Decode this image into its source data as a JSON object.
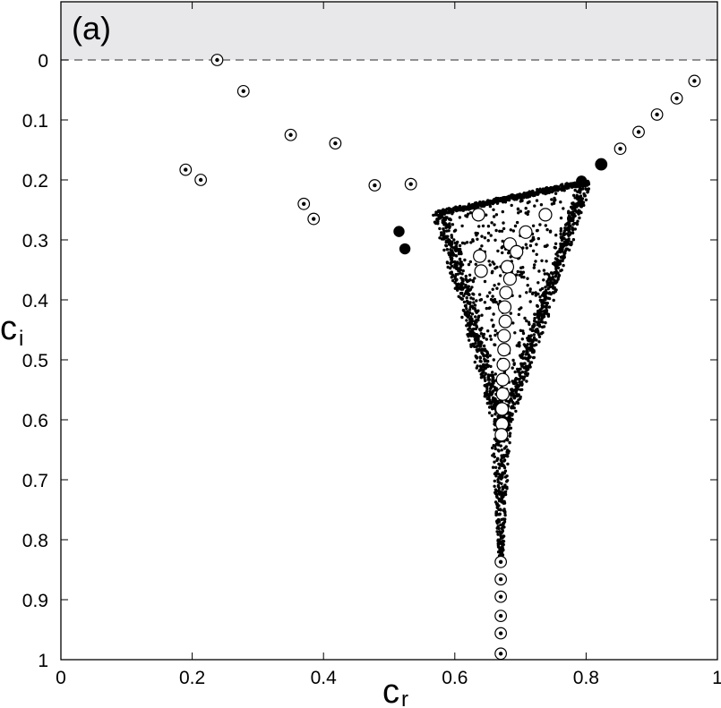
{
  "chart_data": {
    "type": "scatter",
    "panel_label": "(a)",
    "xlabel": {
      "main": "c",
      "sub": "r"
    },
    "ylabel": {
      "main": "c",
      "sub": "i"
    },
    "xlim": [
      0,
      1
    ],
    "ylim": [
      0,
      1
    ],
    "y_inverted": true,
    "x_ticks": [
      "0",
      "0.2",
      "0.4",
      "0.6",
      "0.8",
      "1"
    ],
    "y_ticks": [
      "0",
      "0.1",
      "0.2",
      "0.3",
      "0.4",
      "0.5",
      "0.6",
      "0.7",
      "0.8",
      "0.9",
      "1"
    ],
    "shaded_region": {
      "ci_below": 0,
      "color": "#e8e7ea"
    },
    "reference_line": {
      "ci": 0,
      "style": "dashed",
      "color": "#555555"
    },
    "grid": false,
    "colors": {
      "dot": "#000000",
      "ring": "#000000",
      "shade": "#e8e7ea"
    },
    "series": [
      {
        "marker": "ringed-dot",
        "points": [
          [
            0.238,
            0.0
          ],
          [
            0.278,
            0.052
          ],
          [
            0.35,
            0.125
          ],
          [
            0.418,
            0.139
          ],
          [
            0.19,
            0.183
          ],
          [
            0.213,
            0.2
          ],
          [
            0.478,
            0.209
          ],
          [
            0.533,
            0.207
          ],
          [
            0.37,
            0.24
          ],
          [
            0.385,
            0.265
          ],
          [
            0.823,
            0.174
          ],
          [
            0.852,
            0.148
          ],
          [
            0.88,
            0.12
          ],
          [
            0.908,
            0.091
          ],
          [
            0.938,
            0.064
          ],
          [
            0.965,
            0.035
          ],
          [
            0.67,
            0.837
          ],
          [
            0.67,
            0.866
          ],
          [
            0.67,
            0.895
          ],
          [
            0.67,
            0.927
          ],
          [
            0.67,
            0.956
          ],
          [
            0.67,
            0.99
          ]
        ]
      },
      {
        "marker": "open-circle",
        "points": [
          [
            0.636,
            0.258
          ],
          [
            0.738,
            0.258
          ],
          [
            0.708,
            0.287
          ],
          [
            0.684,
            0.307
          ],
          [
            0.694,
            0.32
          ],
          [
            0.638,
            0.327
          ],
          [
            0.68,
            0.345
          ],
          [
            0.64,
            0.352
          ],
          [
            0.684,
            0.365
          ],
          [
            0.678,
            0.388
          ],
          [
            0.676,
            0.412
          ],
          [
            0.677,
            0.436
          ],
          [
            0.675,
            0.46
          ],
          [
            0.675,
            0.483
          ],
          [
            0.674,
            0.508
          ],
          [
            0.673,
            0.533
          ],
          [
            0.673,
            0.557
          ],
          [
            0.672,
            0.582
          ],
          [
            0.672,
            0.607
          ],
          [
            0.671,
            0.625
          ]
        ]
      },
      {
        "marker": "filled-circle",
        "points": [
          [
            0.515,
            0.286
          ],
          [
            0.524,
            0.315
          ],
          [
            0.793,
            0.202
          ],
          [
            0.823,
            0.174
          ]
        ]
      },
      {
        "marker": "dense-dot-cloud",
        "region": {
          "apex_left": [
            0.575,
            0.255
          ],
          "apex_right": [
            0.795,
            0.205
          ],
          "apex_bottom": [
            0.67,
            0.62
          ],
          "tail_bottom": [
            0.67,
            0.83
          ]
        }
      }
    ]
  }
}
